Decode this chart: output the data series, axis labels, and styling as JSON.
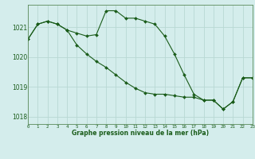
{
  "title": "Graphe pression niveau de la mer (hPa)",
  "bg_color": "#d4edec",
  "grid_color": "#b8d8d4",
  "line_color": "#1a5c1a",
  "marker_color": "#1a5c1a",
  "series1": [
    1020.6,
    1021.1,
    1021.2,
    1021.1,
    1020.9,
    1020.8,
    1020.7,
    1020.75,
    1021.55,
    1021.55,
    1021.3,
    1021.3,
    1021.2,
    1021.1,
    1020.7,
    1020.1,
    1019.4,
    1018.75,
    1018.55,
    1018.55,
    1018.25,
    1018.5,
    1019.3,
    1019.3
  ],
  "series2": [
    1020.6,
    1021.1,
    1021.2,
    1021.1,
    1020.9,
    1020.4,
    1020.1,
    1019.85,
    1019.65,
    1019.4,
    1019.15,
    1018.95,
    1018.8,
    1018.75,
    1018.75,
    1018.7,
    1018.65,
    1018.65,
    1018.55,
    1018.55,
    1018.25,
    1018.5,
    1019.3,
    1019.3
  ],
  "xlim": [
    0,
    23
  ],
  "ylim": [
    1017.75,
    1021.75
  ],
  "yticks": [
    1018,
    1019,
    1020,
    1021
  ],
  "xticks": [
    0,
    1,
    2,
    3,
    4,
    5,
    6,
    7,
    8,
    9,
    10,
    11,
    12,
    13,
    14,
    15,
    16,
    17,
    18,
    19,
    20,
    21,
    22,
    23
  ],
  "figsize": [
    3.2,
    2.0
  ],
  "dpi": 100
}
